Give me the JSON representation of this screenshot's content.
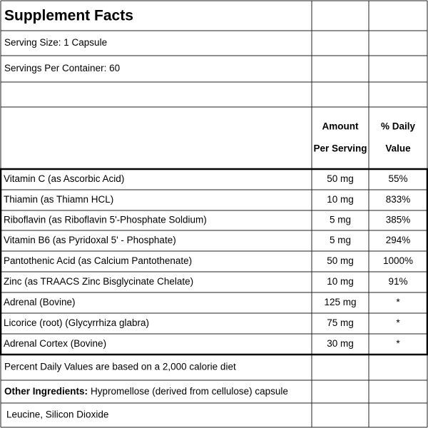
{
  "title": "Supplement Facts",
  "serving_size": "Serving Size: 1 Capsule",
  "servings_per_container": "Servings Per Container: 60",
  "header": {
    "amount": [
      "Amount",
      "Per Serving"
    ],
    "daily_value": [
      "% Daily",
      "Value"
    ]
  },
  "rows": [
    [
      "Vitamin C (as Ascorbic Acid)",
      "50 mg",
      "55%"
    ],
    [
      "Thiamin (as Thiamn HCL)",
      "10 mg",
      "833%"
    ],
    [
      "Riboflavin (as Riboflavin 5'-Phosphate Soldium)",
      "5 mg",
      "385%"
    ],
    [
      "Vitamin B6 (as Pyridoxal 5' - Phosphate)",
      "5 mg",
      "294%"
    ],
    [
      "Pantothenic Acid (as Calcium Pantothenate)",
      "50 mg",
      "1000%"
    ],
    [
      "Zinc (as TRAACS Zinc Bisglycinate Chelate)",
      "10 mg",
      "91%"
    ],
    [
      "Adrenal (Bovine)",
      "125 mg",
      "*"
    ],
    [
      "Licorice (root) (Glycyrrhiza glabra)",
      "75 mg",
      "*"
    ],
    [
      "Adrenal Cortex (Bovine)",
      "30 mg",
      "*"
    ]
  ],
  "footnote": "Percent Daily Values are based on a 2,000 calorie diet",
  "other_ingredients": {
    "label": "Other Ingredients:",
    "text": "Hypromellose (derived from cellulose) capsule",
    "continued": "Leucine, Silicon Dioxide"
  }
}
